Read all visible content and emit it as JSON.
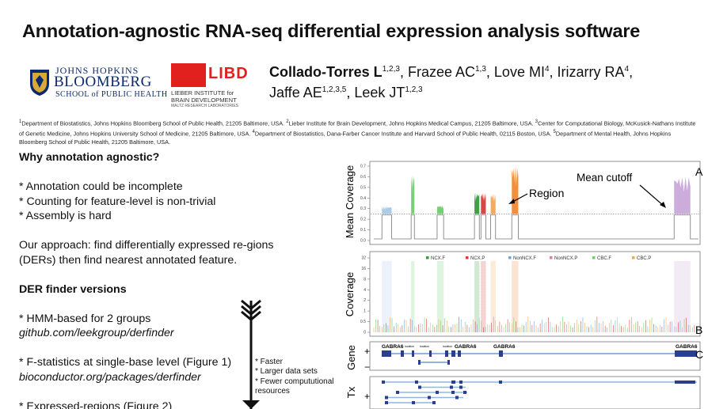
{
  "title": "Annotation-agnostic RNA-seq differential expression analysis software",
  "logos": {
    "jhu": {
      "line1": "JOHNS HOPKINS",
      "line2": "BLOOMBERG",
      "line3": "SCHOOL of PUBLIC HEALTH",
      "seal": "university-seal"
    },
    "libd": {
      "word": "LIBD",
      "line1": "LIEBER INSTITUTE for",
      "line2": "BRAIN DEVELOPMENT",
      "line3": "MALTZ RESEARCH LABORATORIES",
      "color": "#e0211e"
    }
  },
  "authors": [
    {
      "name": "Collado-Torres L",
      "sup": "1,2,3",
      "bold": true
    },
    {
      "name": "Frazee AC",
      "sup": "1,3"
    },
    {
      "name": "Love MI",
      "sup": "4"
    },
    {
      "name": "Irizarry RA",
      "sup": "4"
    },
    {
      "name": "Jaffe AE",
      "sup": "1,2,3,5"
    },
    {
      "name": "Leek JT",
      "sup": "1,2,3"
    }
  ],
  "affiliations": [
    {
      "sup": "1",
      "text": "Department of Biostatistics, Johns Hopkins Bloomberg School of Public Health, 21205 Baltimore, USA. "
    },
    {
      "sup": "2",
      "text": "Lieber Institute for Brain Development, Johns Hopkins Medical Campus, 21205 Baltimore, USA. "
    },
    {
      "sup": "3",
      "text": "Center for Computational Biology, McKusick-Nathans Institute of Genetic Medicine, Johns Hopkins University School of Medicine, 21205 Baltimore, USA. "
    },
    {
      "sup": "4",
      "text": "Department of Biostatistics, Dana-Farber Cancer Institute and Harvard School of Public Health, 02115 Boston, USA. "
    },
    {
      "sup": "5",
      "text": "Department of Mental Health, Johns Hopkins Bloomberg School of Public Health, 21205 Baltimore, USA."
    }
  ],
  "left_column": {
    "why_heading": "Why annotation agnostic?",
    "bullets": [
      "* Annotation could be incomplete",
      "* Counting for feature-level is non-trivial",
      "* Assembly is hard"
    ],
    "approach": "Our approach: find differentially expressed re-gions (DERs) then find nearest annotated feature.",
    "versions_heading": "DER finder versions",
    "v1_text": "* HMM-based for 2 groups",
    "v1_link": "github.com/leekgroup/derfinder",
    "v2_text": "* F-statistics at single-base level (Figure 1)",
    "v2_link": "bioconductor.org/packages/derfinder",
    "v3_text": "* Expressed-regions (Figure 2)"
  },
  "speed_notes": [
    "* Faster",
    "* Larger data sets",
    "* Fewer compututional resources"
  ],
  "figure": {
    "panel_a": {
      "ylabel": "Mean Coverage",
      "yticks": [
        "0.0",
        "0.1",
        "0.2",
        "0.3",
        "0.4",
        "0.5",
        "0.6",
        "0.7"
      ],
      "label": "A",
      "annotation_region": "Region",
      "annotation_cutoff": "Mean cutoff",
      "cutoff": 0.25,
      "peaks": [
        {
          "start": 0.025,
          "end": 0.055,
          "height": 0.32,
          "color": "#a8c8e8"
        },
        {
          "start": 0.115,
          "end": 0.125,
          "height": 0.62,
          "color": "#6fcf6f"
        },
        {
          "start": 0.195,
          "end": 0.215,
          "height": 0.33,
          "color": "#6fcf6f"
        },
        {
          "start": 0.31,
          "end": 0.325,
          "height": 0.45,
          "color": "#3a9a3a"
        },
        {
          "start": 0.33,
          "end": 0.345,
          "height": 0.45,
          "color": "#d93a3a"
        },
        {
          "start": 0.36,
          "end": 0.375,
          "height": 0.44,
          "color": "#f2a654"
        },
        {
          "start": 0.425,
          "end": 0.445,
          "height": 0.7,
          "color": "#ef8a35"
        },
        {
          "start": 0.925,
          "end": 0.975,
          "height": 0.6,
          "color": "#c9a8d8"
        }
      ]
    },
    "panel_b": {
      "ylabel": "Coverage",
      "yticks": [
        "0",
        "0.5",
        "1",
        "2",
        "4",
        "8",
        "16",
        "32"
      ],
      "label": "B",
      "legend": [
        {
          "name": "NCX.F",
          "color": "#3a9a3a"
        },
        {
          "name": "NCX.P",
          "color": "#d93a3a"
        },
        {
          "name": "NonNCX.F",
          "color": "#6aa6d8"
        },
        {
          "name": "NonNCX.P",
          "color": "#e07aa8"
        },
        {
          "name": "CBC.F",
          "color": "#6fcf6f"
        },
        {
          "name": "CBC.P",
          "color": "#f2a654"
        }
      ]
    },
    "panel_c": {
      "ylabel": "Gene",
      "plus": "+",
      "minus": "−",
      "label": "C",
      "gene_labels": [
        "GABRA6",
        "GABRA6",
        "GABRA6",
        "GABRA6"
      ],
      "small_labels": [
        "location",
        "location",
        "location"
      ],
      "color": "#2a3f8f"
    },
    "panel_d": {
      "ylabel": "Tx",
      "plus": "+"
    }
  }
}
